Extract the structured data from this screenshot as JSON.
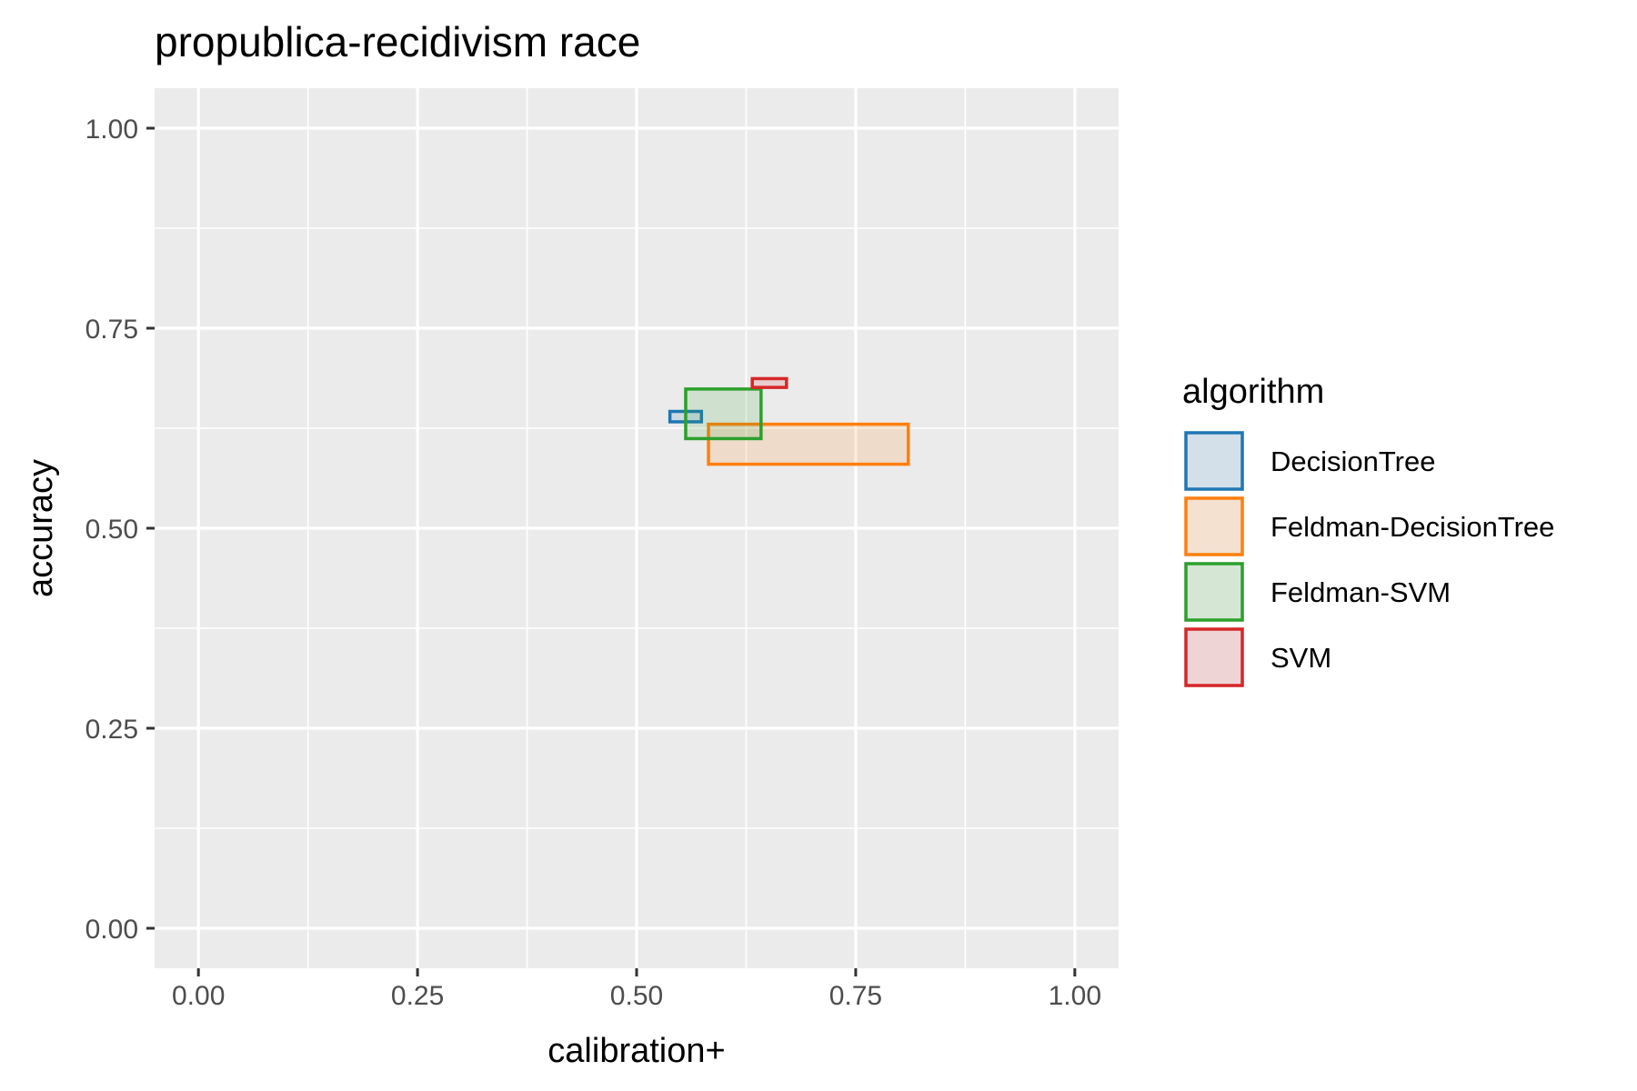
{
  "chart_data": {
    "type": "rect",
    "title": "propublica-recidivism race",
    "xlabel": "calibration+",
    "ylabel": "accuracy",
    "xlim": [
      -0.05,
      1.05
    ],
    "ylim": [
      -0.05,
      1.05
    ],
    "x_ticks": [
      "0.00",
      "0.25",
      "0.50",
      "0.75",
      "1.00"
    ],
    "y_ticks": [
      "0.00",
      "0.25",
      "0.50",
      "0.75",
      "1.00"
    ],
    "grid": true,
    "legend": {
      "title": "algorithm",
      "position": "right"
    },
    "series": [
      {
        "name": "DecisionTree",
        "color": "#1f77b4",
        "xmin": 0.538,
        "xmax": 0.574,
        "ymin": 0.633,
        "ymax": 0.646
      },
      {
        "name": "Feldman-DecisionTree",
        "color": "#ff7f0e",
        "xmin": 0.582,
        "xmax": 0.81,
        "ymin": 0.58,
        "ymax": 0.63
      },
      {
        "name": "Feldman-SVM",
        "color": "#2ca02c",
        "xmin": 0.556,
        "xmax": 0.642,
        "ymin": 0.612,
        "ymax": 0.674
      },
      {
        "name": "SVM",
        "color": "#d62728",
        "xmin": 0.632,
        "xmax": 0.671,
        "ymin": 0.676,
        "ymax": 0.687
      }
    ]
  }
}
